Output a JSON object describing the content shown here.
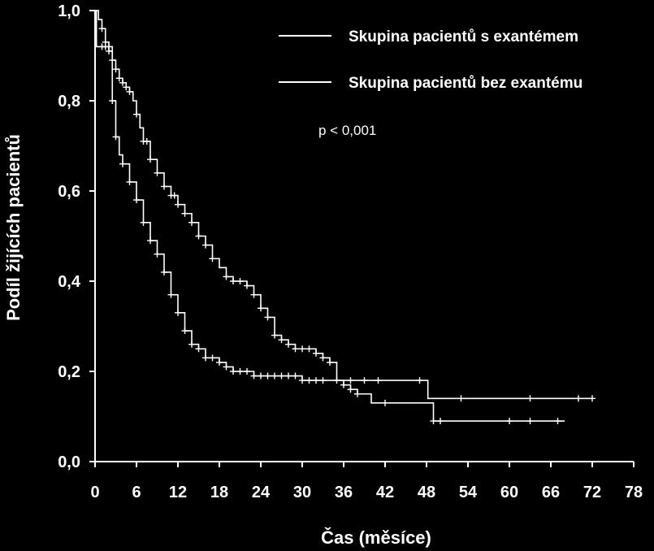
{
  "chart_data": {
    "type": "line",
    "subtype": "kaplan-meier",
    "title": "",
    "xlabel": "Čas (měsíce)",
    "ylabel": "Podíl žijících pacientů",
    "xlim": [
      0,
      78
    ],
    "ylim": [
      0.0,
      1.0
    ],
    "x_ticks": [
      0,
      6,
      12,
      18,
      24,
      30,
      36,
      42,
      48,
      54,
      60,
      66,
      72,
      78
    ],
    "x_tick_labels": [
      "0",
      "6",
      "12",
      "18",
      "24",
      "30",
      "36",
      "42",
      "48",
      "54",
      "60",
      "66",
      "72",
      "78"
    ],
    "y_ticks": [
      0.0,
      0.2,
      0.4,
      0.6,
      0.8,
      1.0
    ],
    "y_tick_labels": [
      "0,0",
      "0,2",
      "0,4",
      "0,6",
      "0,8",
      "1,0"
    ],
    "annotation": "p < 0,001",
    "legend_position": "top-right",
    "background": "#000000",
    "line_color": "#ffffff",
    "series": [
      {
        "name": "Skupina pacientů s exantémem",
        "points": [
          [
            0,
            1.0
          ],
          [
            0.5,
            0.98
          ],
          [
            1,
            0.96
          ],
          [
            1.5,
            0.93
          ],
          [
            2,
            0.91
          ],
          [
            2.5,
            0.89
          ],
          [
            3,
            0.87
          ],
          [
            3.5,
            0.85
          ],
          [
            4,
            0.84
          ],
          [
            4.5,
            0.83
          ],
          [
            5,
            0.82
          ],
          [
            5.5,
            0.8
          ],
          [
            6,
            0.77
          ],
          [
            6.5,
            0.74
          ],
          [
            7,
            0.71
          ],
          [
            8,
            0.67
          ],
          [
            9,
            0.64
          ],
          [
            10,
            0.61
          ],
          [
            11,
            0.59
          ],
          [
            12,
            0.57
          ],
          [
            13,
            0.55
          ],
          [
            14,
            0.53
          ],
          [
            15,
            0.5
          ],
          [
            16,
            0.48
          ],
          [
            17,
            0.45
          ],
          [
            18,
            0.43
          ],
          [
            19,
            0.41
          ],
          [
            20,
            0.4
          ],
          [
            21,
            0.4
          ],
          [
            22,
            0.39
          ],
          [
            23,
            0.37
          ],
          [
            24,
            0.34
          ],
          [
            25,
            0.32
          ],
          [
            26,
            0.28
          ],
          [
            27,
            0.27
          ],
          [
            28,
            0.26
          ],
          [
            29,
            0.25
          ],
          [
            31,
            0.25
          ],
          [
            32,
            0.24
          ],
          [
            33,
            0.23
          ],
          [
            34,
            0.22
          ],
          [
            35,
            0.18
          ],
          [
            36,
            0.17
          ],
          [
            37,
            0.16
          ],
          [
            38,
            0.15
          ],
          [
            40,
            0.13
          ],
          [
            42,
            0.13
          ],
          [
            48,
            0.13
          ],
          [
            49,
            0.09
          ],
          [
            50,
            0.09
          ],
          [
            68,
            0.09
          ]
        ],
        "censor_times": [
          1,
          1.5,
          2,
          2.5,
          3,
          3.5,
          4,
          4.5,
          5,
          6,
          7,
          7.5,
          8,
          9,
          10,
          11,
          11.5,
          12,
          13,
          14,
          15,
          16,
          17,
          19,
          20,
          21,
          22,
          23,
          24,
          25,
          26,
          27,
          28,
          29,
          30,
          31,
          32,
          33,
          34,
          36,
          37,
          38,
          42,
          49,
          50,
          60,
          63,
          67
        ]
      },
      {
        "name": "Skupina pacientů bez exantému",
        "points": [
          [
            0,
            1.0
          ],
          [
            0.2,
            0.92
          ],
          [
            2,
            0.92
          ],
          [
            2.5,
            0.8
          ],
          [
            3,
            0.72
          ],
          [
            3.5,
            0.68
          ],
          [
            4,
            0.66
          ],
          [
            5,
            0.62
          ],
          [
            6,
            0.58
          ],
          [
            7,
            0.53
          ],
          [
            8,
            0.49
          ],
          [
            9,
            0.46
          ],
          [
            10,
            0.42
          ],
          [
            11,
            0.37
          ],
          [
            12,
            0.33
          ],
          [
            13,
            0.29
          ],
          [
            14,
            0.26
          ],
          [
            15,
            0.25
          ],
          [
            16,
            0.23
          ],
          [
            18,
            0.22
          ],
          [
            19,
            0.21
          ],
          [
            20,
            0.2
          ],
          [
            22,
            0.2
          ],
          [
            23,
            0.19
          ],
          [
            29,
            0.19
          ],
          [
            30,
            0.18
          ],
          [
            36,
            0.18
          ],
          [
            37,
            0.18
          ],
          [
            48,
            0.18
          ],
          [
            48.2,
            0.14
          ],
          [
            72,
            0.14
          ]
        ],
        "censor_times": [
          1,
          1.5,
          2,
          2.5,
          3,
          4,
          5,
          6,
          7,
          8,
          9,
          10,
          11,
          12,
          13,
          14,
          15,
          16,
          17,
          18,
          19,
          20,
          21,
          22,
          23,
          24,
          25,
          26,
          27,
          28,
          29,
          30,
          31,
          32,
          33,
          35,
          37,
          39,
          41,
          47,
          53,
          63,
          70,
          72
        ]
      }
    ]
  }
}
